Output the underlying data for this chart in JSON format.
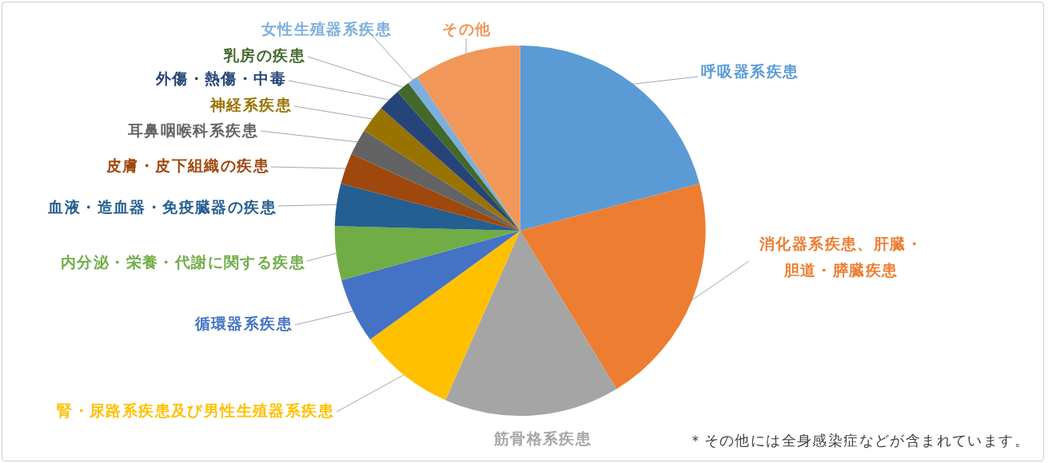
{
  "chart_data": {
    "type": "pie",
    "categories": [
      "呼吸器系疾患",
      "消化器系疾患、肝臓・胆道・膵臓疾患",
      "筋骨格系疾患",
      "腎・尿路系疾患及び男性生殖器系疾患",
      "循環器系疾患",
      "内分泌・栄養・代謝に関する疾患",
      "血液・造血器・免疫臓器の疾患",
      "皮膚・皮下組織の疾患",
      "耳鼻咽喉科系疾患",
      "神経系疾患",
      "外傷・熱傷・中毒",
      "乳房の疾患",
      "女性生殖器系疾患",
      "その他"
    ],
    "values": [
      20.9,
      20.4,
      15.3,
      8.4,
      5.7,
      4.7,
      3.7,
      2.7,
      2.3,
      2.4,
      2.0,
      1.2,
      0.9,
      9.4
    ],
    "colors": [
      "#5b9bd5",
      "#ed7d31",
      "#a5a5a5",
      "#ffc000",
      "#4472c4",
      "#70ad47",
      "#255e91",
      "#9e480e",
      "#636363",
      "#997300",
      "#264478",
      "#43682b",
      "#7cafdd",
      "#f1975a"
    ],
    "annotations": [
      "＊その他には全身感染症などが含まれています。"
    ]
  }
}
